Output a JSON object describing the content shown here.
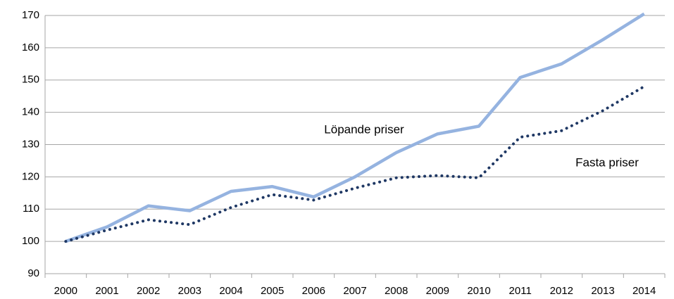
{
  "chart_data": {
    "type": "line",
    "categories": [
      "2000",
      "2001",
      "2002",
      "2003",
      "2004",
      "2005",
      "2006",
      "2007",
      "2008",
      "2009",
      "2010",
      "2011",
      "2012",
      "2013",
      "2014"
    ],
    "series": [
      {
        "name": "Löpande priser",
        "color": "#95b3e0",
        "style": "solid",
        "values": [
          100,
          104.5,
          111,
          109.5,
          115.5,
          117,
          113.8,
          120,
          127.5,
          133.3,
          135.7,
          150.8,
          155,
          162.5,
          170.5
        ]
      },
      {
        "name": "Fasta priser",
        "color": "#1f3864",
        "style": "dotted",
        "values": [
          100,
          103.5,
          106.7,
          105.2,
          110.5,
          114.5,
          112.8,
          116.5,
          119.7,
          120.4,
          119.7,
          132.3,
          134.3,
          140.5,
          148
        ]
      }
    ],
    "ylim": [
      90,
      170
    ],
    "yticks": [
      90,
      100,
      110,
      120,
      130,
      140,
      150,
      160,
      170
    ],
    "grid": true
  }
}
